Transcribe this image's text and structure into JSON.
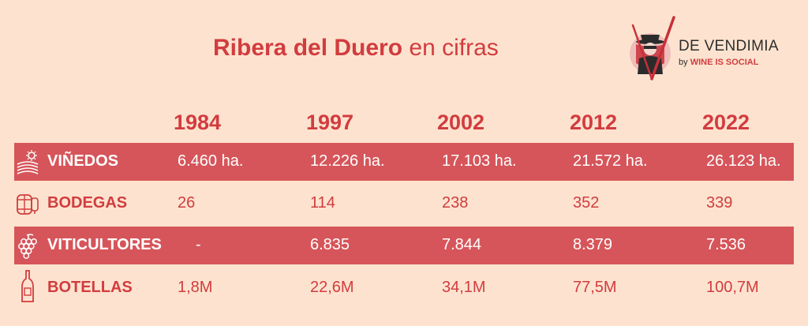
{
  "title": {
    "bold": "Ribera del Duero",
    "light": "en cifras"
  },
  "logo": {
    "name": "DE VENDIMIA",
    "by": "by",
    "brand": "WINE IS SOCIAL"
  },
  "colors": {
    "background": "#fde3cf",
    "accent": "#d23c3f",
    "band": "#d6555a",
    "band_text": "#ffffff"
  },
  "chart_data": {
    "type": "table",
    "title": "Ribera del Duero en cifras",
    "columns": [
      "1984",
      "1997",
      "2002",
      "2012",
      "2022"
    ],
    "rows": [
      {
        "label": "VIÑEDOS",
        "icon": "vineyard-icon",
        "values": [
          "6.460 ha.",
          "12.226 ha.",
          "17.103 ha.",
          "21.572 ha.",
          "26.123 ha."
        ]
      },
      {
        "label": "BODEGAS",
        "icon": "barrel-icon",
        "values": [
          "26",
          "114",
          "238",
          "352",
          "339"
        ]
      },
      {
        "label": "VITICULTORES",
        "icon": "grapes-icon",
        "values": [
          "-",
          "6.835",
          "7.844",
          "8.379",
          "7.536"
        ]
      },
      {
        "label": "BOTELLAS",
        "icon": "bottle-icon",
        "values": [
          "1,8M",
          "22,6M",
          "34,1M",
          "77,5M",
          "100,7M"
        ]
      }
    ]
  }
}
